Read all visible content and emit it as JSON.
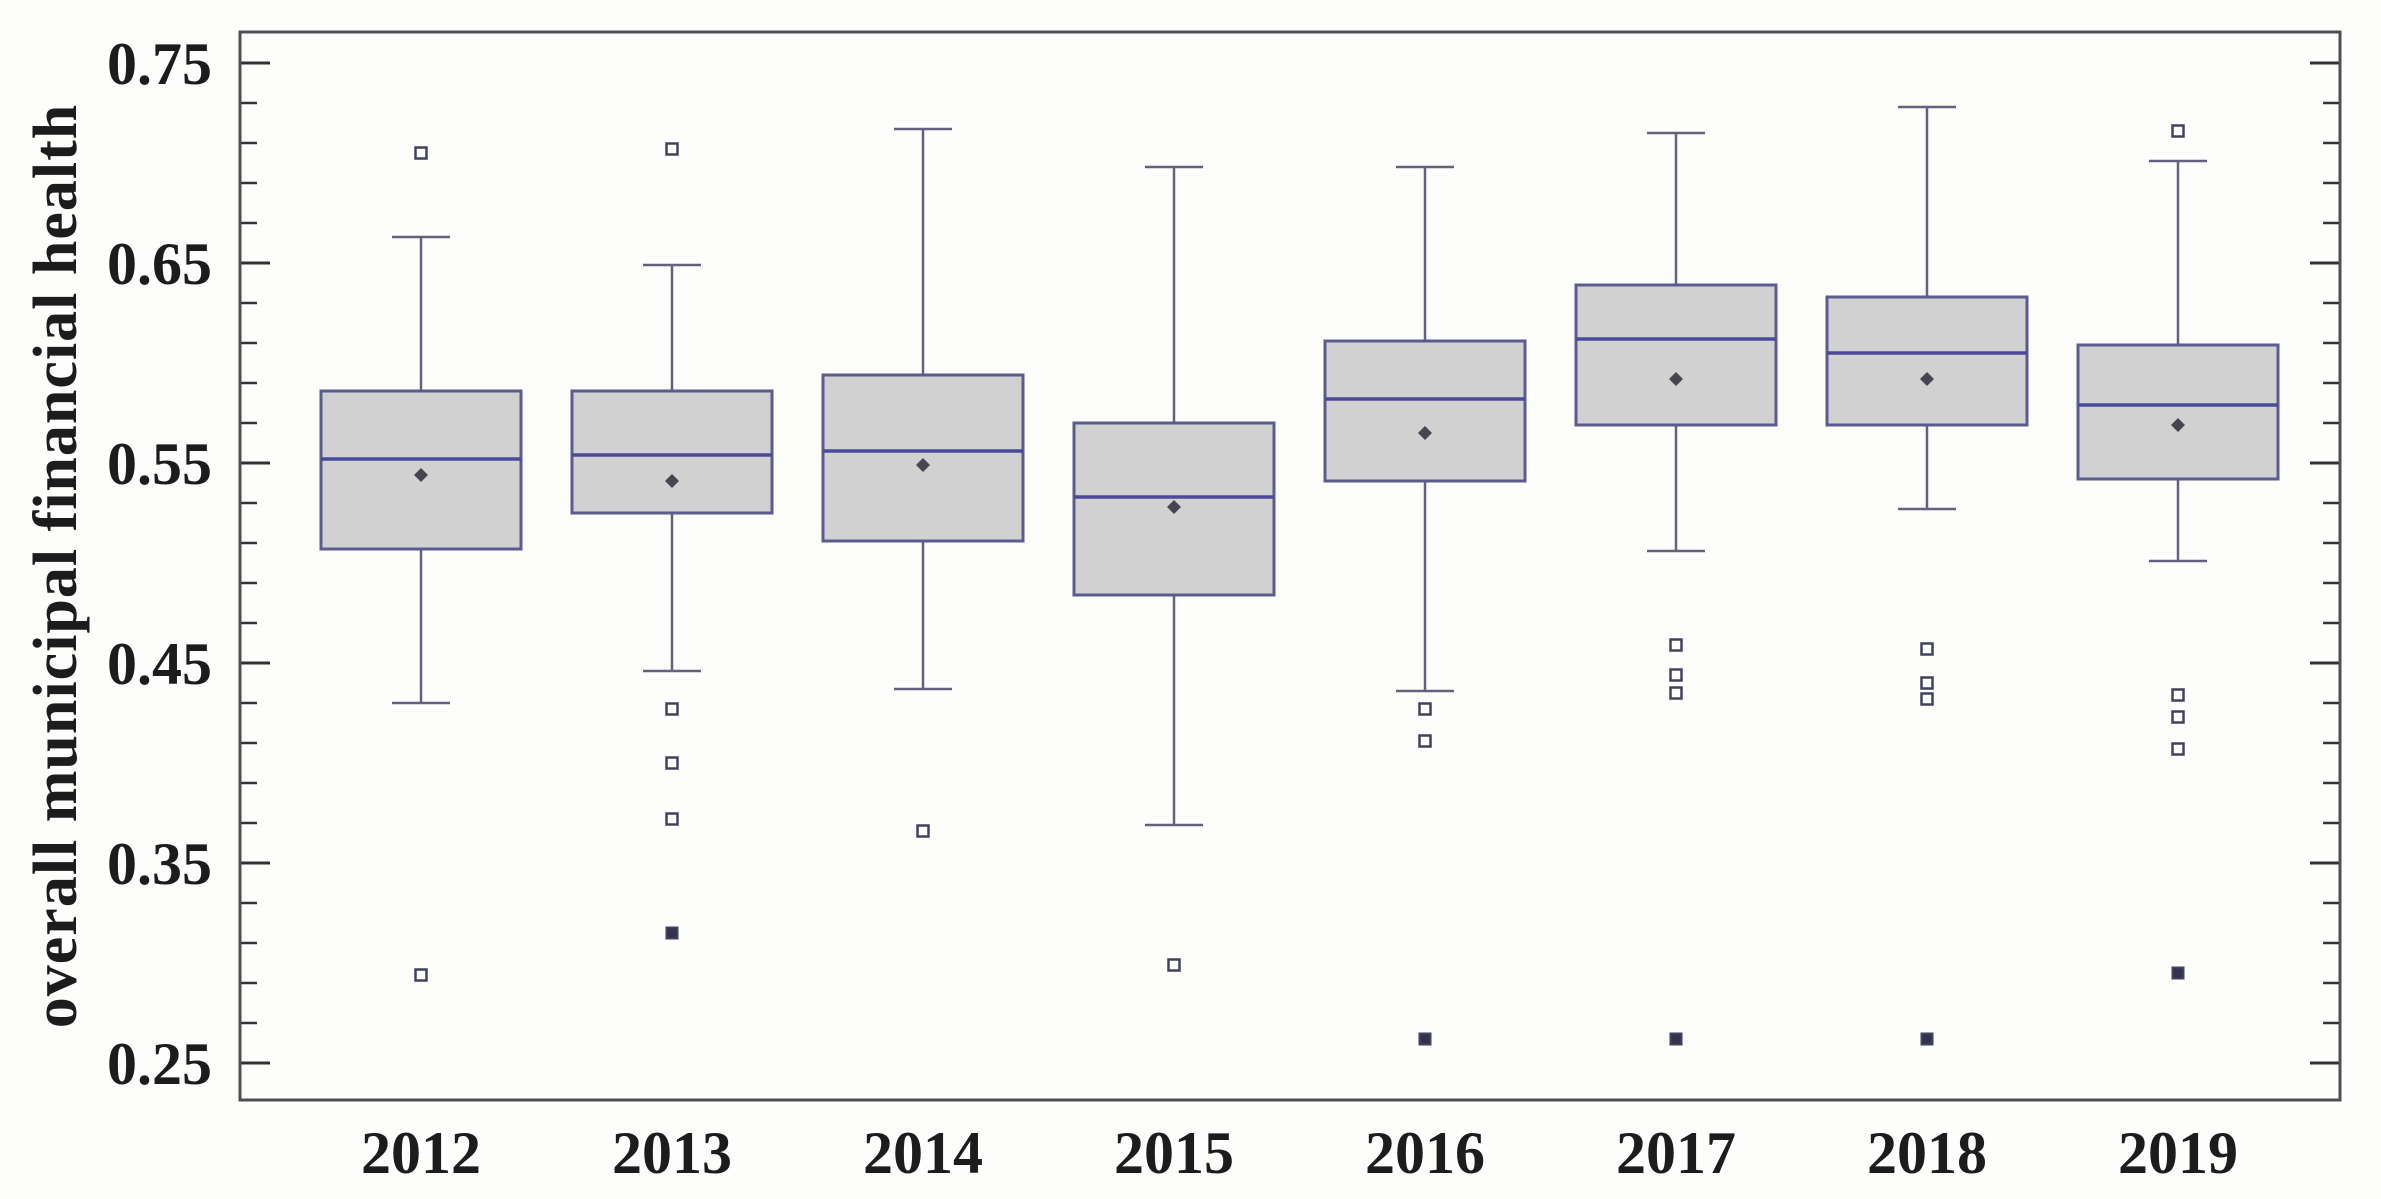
{
  "chart_data": {
    "type": "boxplot",
    "title": "",
    "xlabel": "",
    "ylabel": "overall municipal financial health",
    "categories": [
      "2012",
      "2013",
      "2014",
      "2015",
      "2016",
      "2017",
      "2018",
      "2019"
    ],
    "y_axis": {
      "min": 0.2315,
      "max": 0.7655,
      "major_ticks": [
        0.75,
        0.65,
        0.55,
        0.45,
        0.35,
        0.25
      ],
      "major_tick_labels": [
        "0.75",
        "0.65",
        "0.55",
        "0.45",
        "0.35",
        "0.25"
      ],
      "minor_tick_step": 0.02,
      "mirrored_right_axis": true
    },
    "grid": false,
    "legend": "none",
    "series": [
      {
        "year": "2012",
        "whisker_low": 0.43,
        "q1": 0.507,
        "median": 0.552,
        "mean": 0.544,
        "q3": 0.586,
        "whisker_high": 0.663,
        "outliers_open": [
          0.705,
          0.294
        ],
        "outliers_filled": []
      },
      {
        "year": "2013",
        "whisker_low": 0.446,
        "q1": 0.525,
        "median": 0.554,
        "mean": 0.541,
        "q3": 0.586,
        "whisker_high": 0.649,
        "outliers_open": [
          0.707,
          0.427,
          0.4,
          0.372
        ],
        "outliers_filled": [
          0.315
        ]
      },
      {
        "year": "2014",
        "whisker_low": 0.437,
        "q1": 0.511,
        "median": 0.556,
        "mean": 0.549,
        "q3": 0.594,
        "whisker_high": 0.717,
        "outliers_open": [
          0.366
        ],
        "outliers_filled": []
      },
      {
        "year": "2015",
        "whisker_low": 0.369,
        "q1": 0.484,
        "median": 0.533,
        "mean": 0.528,
        "q3": 0.57,
        "whisker_high": 0.698,
        "outliers_open": [
          0.299
        ],
        "outliers_filled": []
      },
      {
        "year": "2016",
        "whisker_low": 0.436,
        "q1": 0.541,
        "median": 0.582,
        "mean": 0.565,
        "q3": 0.611,
        "whisker_high": 0.698,
        "outliers_open": [
          0.427,
          0.411
        ],
        "outliers_filled": [
          0.262
        ]
      },
      {
        "year": "2017",
        "whisker_low": 0.506,
        "q1": 0.569,
        "median": 0.612,
        "mean": 0.592,
        "q3": 0.639,
        "whisker_high": 0.715,
        "outliers_open": [
          0.459,
          0.444,
          0.435
        ],
        "outliers_filled": [
          0.262
        ]
      },
      {
        "year": "2018",
        "whisker_low": 0.527,
        "q1": 0.569,
        "median": 0.605,
        "mean": 0.592,
        "q3": 0.633,
        "whisker_high": 0.728,
        "outliers_open": [
          0.457,
          0.44,
          0.432
        ],
        "outliers_filled": [
          0.262
        ]
      },
      {
        "year": "2019",
        "whisker_low": 0.501,
        "q1": 0.542,
        "median": 0.579,
        "mean": 0.569,
        "q3": 0.609,
        "whisker_high": 0.701,
        "outliers_open": [
          0.716,
          0.434,
          0.423,
          0.407
        ],
        "outliers_filled": [
          0.295
        ]
      }
    ],
    "style": {
      "background": "#fdfdfc",
      "frame_color": "#4f4f4f",
      "tick_color": "#333333",
      "text_color": "#1c1c1c",
      "box_fill": "#d2d1d2",
      "box_border": "#5b5b8f",
      "median_color": "#4a4a99",
      "whisker_color": "#62627f",
      "outlier_stroke": "#42425e",
      "outlier_filled_fill": "#33334f",
      "mean_marker_color": "#474650"
    }
  }
}
